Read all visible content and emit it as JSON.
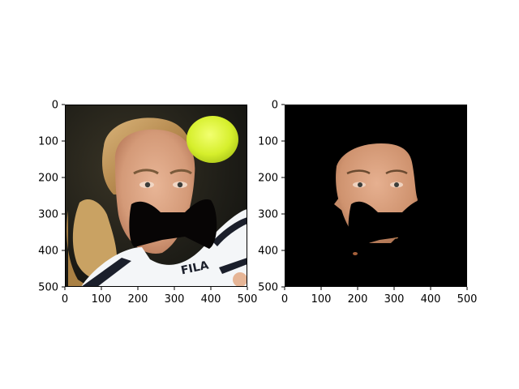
{
  "figure": {
    "background": "#ffffff"
  },
  "panels": [
    {
      "id": "left",
      "content": "original photo of a woman's face with a tennis ball upper right; black bow-tie shaped mask over the mouth; 'FILA' logo on shirt",
      "logo_text": "FILA"
    },
    {
      "id": "right",
      "content": "segmented face region on black background with the same black bow-tie mask"
    }
  ],
  "chart_data": [
    {
      "type": "image",
      "xlim": [
        0,
        500
      ],
      "ylim": [
        500,
        0
      ],
      "xticks": [
        0,
        100,
        200,
        300,
        400,
        500
      ],
      "yticks": [
        0,
        100,
        200,
        300,
        400,
        500
      ],
      "xtick_labels": [
        "0",
        "100",
        "200",
        "300",
        "400",
        "500"
      ],
      "ytick_labels": [
        "0",
        "100",
        "200",
        "300",
        "400",
        "500"
      ],
      "mask_shape": "bow-tie",
      "mask_color": "#070505"
    },
    {
      "type": "image",
      "xlim": [
        0,
        500
      ],
      "ylim": [
        500,
        0
      ],
      "xticks": [
        0,
        100,
        200,
        300,
        400,
        500
      ],
      "yticks": [
        0,
        100,
        200,
        300,
        400,
        500
      ],
      "xtick_labels": [
        "0",
        "100",
        "200",
        "300",
        "400",
        "500"
      ],
      "ytick_labels": [
        "0",
        "100",
        "200",
        "300",
        "400",
        "500"
      ],
      "background_color": "#000000",
      "mask_shape": "bow-tie",
      "mask_color": "#000000"
    }
  ]
}
